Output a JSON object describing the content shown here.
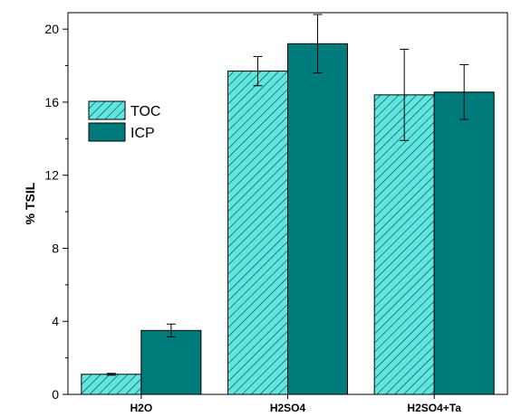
{
  "chart_data": {
    "type": "bar",
    "categories": [
      "H2O",
      "H2SO4",
      "H2SO4+Ta"
    ],
    "series": [
      {
        "name": "TOC",
        "values": [
          1.1,
          17.7,
          16.4
        ],
        "errors": [
          0.05,
          0.8,
          2.5
        ],
        "color": "#5fe6e0",
        "pattern": "hatched"
      },
      {
        "name": "ICP",
        "values": [
          3.5,
          19.2,
          16.55
        ],
        "errors": [
          0.35,
          1.6,
          1.5
        ],
        "color": "#007b7b",
        "pattern": "solid"
      }
    ],
    "title": "",
    "xlabel": "",
    "ylabel": "% TSIL",
    "ylim": [
      0,
      20.9
    ],
    "yticks": [
      0,
      4,
      8,
      12,
      16,
      20
    ],
    "ytick_labels": [
      "0",
      "4",
      "8",
      "12",
      "16",
      "20"
    ],
    "legend_position": "upper-left",
    "grid": false
  }
}
